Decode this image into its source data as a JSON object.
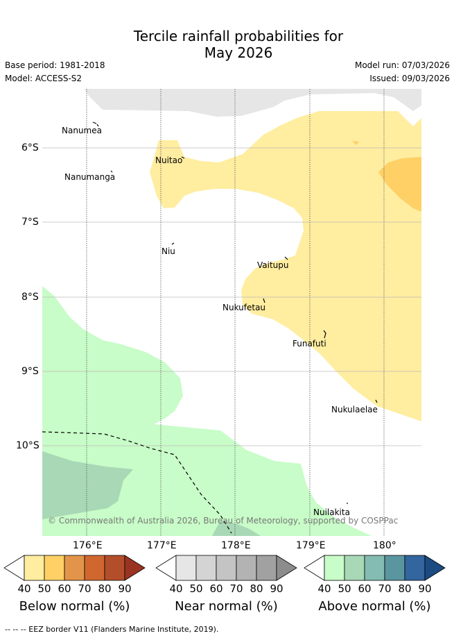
{
  "title": {
    "line1": "Tercile rainfall probabilities for",
    "line2": "May 2026"
  },
  "meta": {
    "base_period": "Base period: 1981-2018",
    "model": "Model: ACCESS-S2",
    "model_run": "Model run: 07/03/2026",
    "issued": "Issued: 09/03/2026"
  },
  "map": {
    "lat_ticks": [
      "6°S",
      "7°S",
      "8°S",
      "9°S",
      "10°S"
    ],
    "lon_ticks": [
      "176°E",
      "177°E",
      "178°E",
      "179°E",
      "180°"
    ],
    "places": [
      "Nanumea",
      "Nanumanga",
      "Nuitao",
      "Niu",
      "Vaitupu",
      "Nukufetau",
      "Funafuti",
      "Nukulaelae",
      "Nuilakita"
    ],
    "copyright": "© Commonwealth of Australia 2026, Bureau of Meteorology, supported by COSPPac"
  },
  "colorbars": [
    {
      "label": "Below normal (%)",
      "ticks": [
        "40",
        "50",
        "60",
        "70",
        "80",
        "90"
      ],
      "colors": [
        "#ffeda0",
        "#fed065",
        "#e2954a",
        "#d0672f",
        "#b34e2b",
        "#9b3322"
      ]
    },
    {
      "label": "Near normal (%)",
      "ticks": [
        "40",
        "50",
        "60",
        "70",
        "80",
        "90"
      ],
      "colors": [
        "#e6e6e6",
        "#d4d4d4",
        "#c4c4c4",
        "#b3b3b3",
        "#a1a1a1",
        "#8c8c8c"
      ]
    },
    {
      "label": "Above normal (%)",
      "ticks": [
        "40",
        "50",
        "60",
        "70",
        "80",
        "90"
      ],
      "colors": [
        "#c8fcc8",
        "#a8d8b5",
        "#84bcb2",
        "#5b95a0",
        "#33659e",
        "#1c4b82"
      ]
    }
  ],
  "footer": {
    "legend": "--  --  -- EEZ border V11 (Flanders Marine Institute, 2019)."
  }
}
